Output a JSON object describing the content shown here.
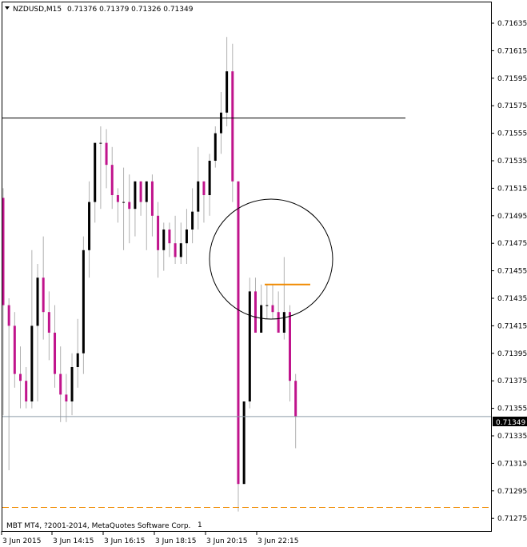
{
  "header": {
    "symbol": "NZDUSD,M15",
    "ohlc": "0.71376 0.71379 0.71326 0.71349"
  },
  "footer": {
    "copyright": "MBT MT4, ?2001-2014, MetaQuotes Software Corp.",
    "marker": "1"
  },
  "price_label": "0.71349",
  "colors": {
    "bull": "#000000",
    "bear": "#c0148c",
    "wick": "#b0b0b0",
    "orange": "#f08a00",
    "price_line": "#8c9aa8",
    "frame": "#000000"
  },
  "chart_data": {
    "type": "candlestick",
    "title": "NZDUSD,M15",
    "ylim": [
      0.71265,
      0.7165
    ],
    "y_ticks": [
      "0.71635",
      "0.71615",
      "0.71595",
      "0.71575",
      "0.71555",
      "0.71535",
      "0.71515",
      "0.71495",
      "0.71475",
      "0.71455",
      "0.71435",
      "0.71415",
      "0.71395",
      "0.71375",
      "0.71355",
      "0.71335",
      "0.71315",
      "0.71295",
      "0.71275"
    ],
    "x_ticks": [
      "3 Jun 2015",
      "3 Jun 14:15",
      "3 Jun 16:15",
      "3 Jun 18:15",
      "3 Jun 20:15",
      "3 Jun 22:15"
    ],
    "current_price": 0.71349,
    "horizontal_line_black": 0.71566,
    "horizontal_line_orange_dashed": 0.71283,
    "orange_segment_level": 0.71445,
    "candles": [
      {
        "o": 0.71508,
        "h": 0.71515,
        "l": 0.7135,
        "c": 0.7143
      },
      {
        "o": 0.7143,
        "h": 0.71435,
        "l": 0.7131,
        "c": 0.71415
      },
      {
        "o": 0.71415,
        "h": 0.71425,
        "l": 0.7137,
        "c": 0.7138
      },
      {
        "o": 0.7138,
        "h": 0.714,
        "l": 0.71355,
        "c": 0.71375
      },
      {
        "o": 0.71375,
        "h": 0.71385,
        "l": 0.71355,
        "c": 0.7136
      },
      {
        "o": 0.7136,
        "h": 0.7147,
        "l": 0.71355,
        "c": 0.71415
      },
      {
        "o": 0.71415,
        "h": 0.7146,
        "l": 0.7136,
        "c": 0.7145
      },
      {
        "o": 0.7145,
        "h": 0.7148,
        "l": 0.71405,
        "c": 0.71425
      },
      {
        "o": 0.71425,
        "h": 0.7144,
        "l": 0.7139,
        "c": 0.7141
      },
      {
        "o": 0.7141,
        "h": 0.7143,
        "l": 0.7137,
        "c": 0.7138
      },
      {
        "o": 0.7138,
        "h": 0.714,
        "l": 0.71345,
        "c": 0.71365
      },
      {
        "o": 0.71365,
        "h": 0.7138,
        "l": 0.71345,
        "c": 0.7136
      },
      {
        "o": 0.7136,
        "h": 0.71395,
        "l": 0.7135,
        "c": 0.71385
      },
      {
        "o": 0.71385,
        "h": 0.7142,
        "l": 0.7137,
        "c": 0.71395
      },
      {
        "o": 0.71395,
        "h": 0.7148,
        "l": 0.7138,
        "c": 0.7147
      },
      {
        "o": 0.7147,
        "h": 0.7152,
        "l": 0.7145,
        "c": 0.71505
      },
      {
        "o": 0.71505,
        "h": 0.71545,
        "l": 0.7149,
        "c": 0.71548
      },
      {
        "o": 0.71548,
        "h": 0.7156,
        "l": 0.715,
        "c": 0.71548
      },
      {
        "o": 0.71548,
        "h": 0.71558,
        "l": 0.71515,
        "c": 0.71532
      },
      {
        "o": 0.71532,
        "h": 0.71545,
        "l": 0.715,
        "c": 0.7151
      },
      {
        "o": 0.7151,
        "h": 0.71515,
        "l": 0.7149,
        "c": 0.71505
      },
      {
        "o": 0.71505,
        "h": 0.7153,
        "l": 0.7147,
        "c": 0.71505
      },
      {
        "o": 0.71505,
        "h": 0.71525,
        "l": 0.71475,
        "c": 0.715
      },
      {
        "o": 0.715,
        "h": 0.7152,
        "l": 0.7148,
        "c": 0.7152
      },
      {
        "o": 0.7152,
        "h": 0.7152,
        "l": 0.71495,
        "c": 0.71505
      },
      {
        "o": 0.71505,
        "h": 0.7152,
        "l": 0.7147,
        "c": 0.7152
      },
      {
        "o": 0.7152,
        "h": 0.71525,
        "l": 0.7148,
        "c": 0.71495
      },
      {
        "o": 0.71495,
        "h": 0.71505,
        "l": 0.7145,
        "c": 0.7147
      },
      {
        "o": 0.7147,
        "h": 0.7149,
        "l": 0.71455,
        "c": 0.71485
      },
      {
        "o": 0.71485,
        "h": 0.7149,
        "l": 0.71465,
        "c": 0.71475
      },
      {
        "o": 0.71475,
        "h": 0.71495,
        "l": 0.7146,
        "c": 0.71465
      },
      {
        "o": 0.71465,
        "h": 0.7149,
        "l": 0.7146,
        "c": 0.71475
      },
      {
        "o": 0.71475,
        "h": 0.715,
        "l": 0.7146,
        "c": 0.71485
      },
      {
        "o": 0.71485,
        "h": 0.71515,
        "l": 0.71475,
        "c": 0.71498
      },
      {
        "o": 0.71498,
        "h": 0.71545,
        "l": 0.71485,
        "c": 0.7152
      },
      {
        "o": 0.7152,
        "h": 0.7152,
        "l": 0.7149,
        "c": 0.7151
      },
      {
        "o": 0.7151,
        "h": 0.7154,
        "l": 0.71495,
        "c": 0.71535
      },
      {
        "o": 0.71535,
        "h": 0.7156,
        "l": 0.7153,
        "c": 0.71555
      },
      {
        "o": 0.71555,
        "h": 0.71585,
        "l": 0.7154,
        "c": 0.7157
      },
      {
        "o": 0.7157,
        "h": 0.71625,
        "l": 0.7156,
        "c": 0.716
      },
      {
        "o": 0.716,
        "h": 0.7162,
        "l": 0.71505,
        "c": 0.7152
      },
      {
        "o": 0.7152,
        "h": 0.7152,
        "l": 0.7128,
        "c": 0.713
      },
      {
        "o": 0.713,
        "h": 0.7136,
        "l": 0.713,
        "c": 0.7136
      },
      {
        "o": 0.7136,
        "h": 0.7145,
        "l": 0.71355,
        "c": 0.7144
      },
      {
        "o": 0.7144,
        "h": 0.7145,
        "l": 0.7141,
        "c": 0.7141
      },
      {
        "o": 0.7141,
        "h": 0.71445,
        "l": 0.7141,
        "c": 0.7143
      },
      {
        "o": 0.7143,
        "h": 0.71445,
        "l": 0.7142,
        "c": 0.7143
      },
      {
        "o": 0.7143,
        "h": 0.71445,
        "l": 0.7142,
        "c": 0.71425
      },
      {
        "o": 0.71425,
        "h": 0.7144,
        "l": 0.7141,
        "c": 0.7141
      },
      {
        "o": 0.7141,
        "h": 0.71465,
        "l": 0.71405,
        "c": 0.71425
      },
      {
        "o": 0.71425,
        "h": 0.7143,
        "l": 0.7136,
        "c": 0.71375
      },
      {
        "o": 0.71375,
        "h": 0.7138,
        "l": 0.71326,
        "c": 0.71349
      }
    ]
  }
}
